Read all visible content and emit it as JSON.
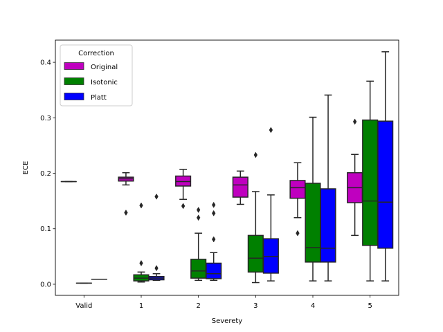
{
  "chart_data": {
    "type": "box",
    "xlabel": "Severety",
    "ylabel": "ECE",
    "ylim": [
      -0.02,
      0.44
    ],
    "yticks": [
      0.0,
      0.1,
      0.2,
      0.3,
      0.4
    ],
    "ytick_labels": [
      "0.0",
      "0.1",
      "0.2",
      "0.3",
      "0.4"
    ],
    "categories": [
      "Valid",
      "1",
      "2",
      "3",
      "4",
      "5"
    ],
    "legend": {
      "title": "Correction",
      "position": "top-left"
    },
    "series": [
      {
        "name": "Original",
        "color": "#bf00bf",
        "boxes": [
          {
            "whislo": 0.185,
            "q1": 0.185,
            "med": 0.185,
            "q3": 0.185,
            "whishi": 0.185,
            "fliers": []
          },
          {
            "whislo": 0.179,
            "q1": 0.186,
            "med": 0.19,
            "q3": 0.193,
            "whishi": 0.201,
            "fliers": [
              0.129
            ]
          },
          {
            "whislo": 0.153,
            "q1": 0.177,
            "med": 0.185,
            "q3": 0.195,
            "whishi": 0.207,
            "fliers": [
              0.141
            ]
          },
          {
            "whislo": 0.144,
            "q1": 0.157,
            "med": 0.179,
            "q3": 0.193,
            "whishi": 0.204,
            "fliers": []
          },
          {
            "whislo": 0.12,
            "q1": 0.155,
            "med": 0.174,
            "q3": 0.187,
            "whishi": 0.219,
            "fliers": [
              0.092
            ]
          },
          {
            "whislo": 0.088,
            "q1": 0.147,
            "med": 0.174,
            "q3": 0.201,
            "whishi": 0.234,
            "fliers": [
              0.293
            ]
          }
        ]
      },
      {
        "name": "Isotonic",
        "color": "#008000",
        "boxes": [
          {
            "whislo": 0.002,
            "q1": 0.002,
            "med": 0.002,
            "q3": 0.002,
            "whishi": 0.002,
            "fliers": []
          },
          {
            "whislo": 0.004,
            "q1": 0.006,
            "med": 0.011,
            "q3": 0.017,
            "whishi": 0.022,
            "fliers": [
              0.038,
              0.142
            ]
          },
          {
            "whislo": 0.007,
            "q1": 0.011,
            "med": 0.024,
            "q3": 0.045,
            "whishi": 0.092,
            "fliers": [
              0.12,
              0.134
            ]
          },
          {
            "whislo": 0.003,
            "q1": 0.022,
            "med": 0.047,
            "q3": 0.088,
            "whishi": 0.167,
            "fliers": [
              0.233
            ]
          },
          {
            "whislo": 0.006,
            "q1": 0.04,
            "med": 0.066,
            "q3": 0.182,
            "whishi": 0.301,
            "fliers": []
          },
          {
            "whislo": 0.006,
            "q1": 0.07,
            "med": 0.15,
            "q3": 0.296,
            "whishi": 0.366,
            "fliers": []
          }
        ]
      },
      {
        "name": "Platt",
        "color": "#0000ff",
        "boxes": [
          {
            "whislo": 0.009,
            "q1": 0.009,
            "med": 0.009,
            "q3": 0.009,
            "whishi": 0.009,
            "fliers": []
          },
          {
            "whislo": 0.007,
            "q1": 0.008,
            "med": 0.011,
            "q3": 0.014,
            "whishi": 0.019,
            "fliers": [
              0.029,
              0.158
            ]
          },
          {
            "whislo": 0.007,
            "q1": 0.01,
            "med": 0.019,
            "q3": 0.038,
            "whishi": 0.057,
            "fliers": [
              0.081,
              0.128,
              0.143
            ]
          },
          {
            "whislo": 0.006,
            "q1": 0.02,
            "med": 0.05,
            "q3": 0.082,
            "whishi": 0.161,
            "fliers": [
              0.278
            ]
          },
          {
            "whislo": 0.006,
            "q1": 0.04,
            "med": 0.065,
            "q3": 0.172,
            "whishi": 0.341,
            "fliers": []
          },
          {
            "whislo": 0.006,
            "q1": 0.065,
            "med": 0.148,
            "q3": 0.294,
            "whishi": 0.419,
            "fliers": []
          }
        ]
      }
    ]
  }
}
